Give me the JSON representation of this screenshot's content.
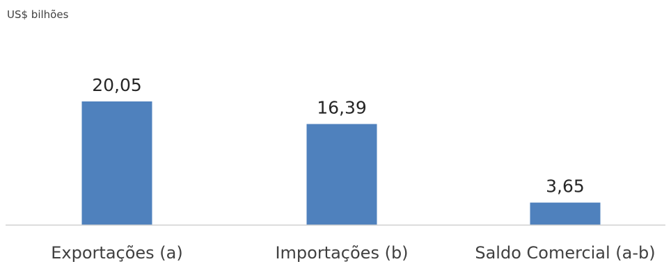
{
  "chart_data": {
    "type": "bar",
    "unit_label": "US$ bilhões",
    "categories": [
      "Exportações (a)",
      "Importações (b)",
      "Saldo Comercial (a-b)"
    ],
    "values": [
      20.05,
      16.39,
      3.65
    ],
    "value_labels": [
      "20,05",
      "16,39",
      "3,65"
    ],
    "ylim": [
      0,
      20.05
    ],
    "grid": false,
    "legend": "none",
    "colors": {
      "bar": "#4f81bd"
    }
  }
}
